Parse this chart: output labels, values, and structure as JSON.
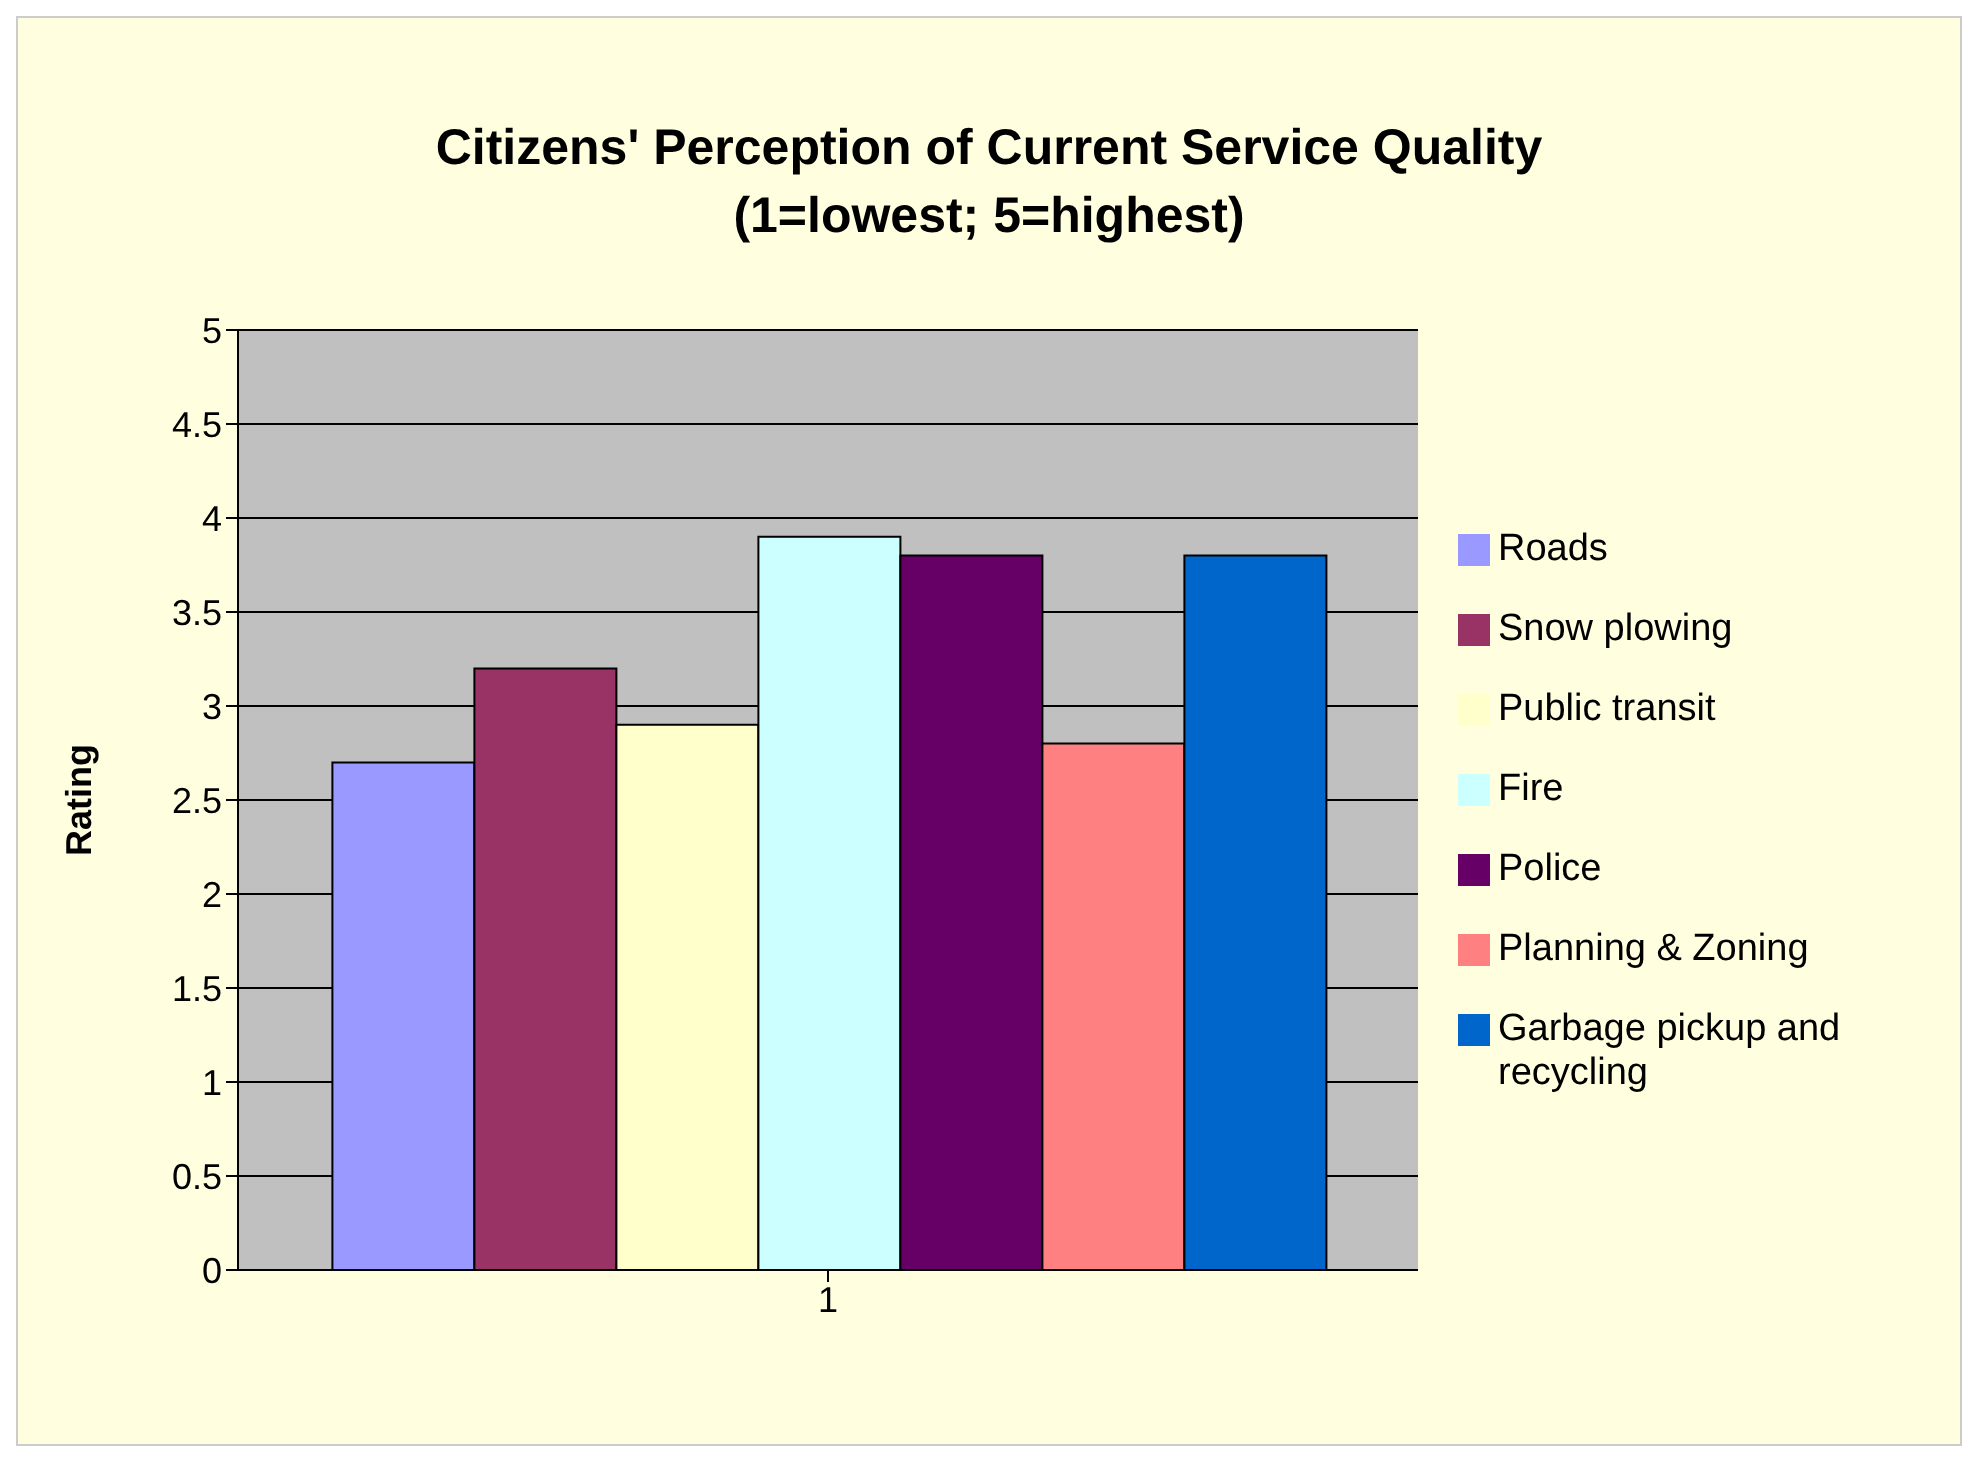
{
  "chart_data": {
    "type": "bar",
    "title": "Citizens' Perception of Current Service Quality",
    "subtitle": "(1=lowest; 5=highest)",
    "ylabel": "Rating",
    "categories": [
      "1"
    ],
    "series": [
      {
        "name": "Roads",
        "color": "#9999ff",
        "values": [
          2.7
        ]
      },
      {
        "name": "Snow plowing",
        "color": "#993366",
        "values": [
          3.2
        ]
      },
      {
        "name": "Public transit",
        "color": "#ffffcc",
        "values": [
          2.9
        ]
      },
      {
        "name": "Fire",
        "color": "#ccffff",
        "values": [
          3.9
        ]
      },
      {
        "name": "Police",
        "color": "#660066",
        "values": [
          3.8
        ]
      },
      {
        "name": "Planning & Zoning",
        "color": "#ff8080",
        "values": [
          2.8
        ]
      },
      {
        "name": "Garbage pickup and recycling",
        "color": "#0066cc",
        "values": [
          3.8
        ]
      }
    ],
    "ylim": [
      0,
      5
    ],
    "yticks": [
      0,
      0.5,
      1,
      1.5,
      2,
      2.5,
      3,
      3.5,
      4,
      4.5,
      5
    ],
    "grid": "y",
    "legend": "right"
  }
}
